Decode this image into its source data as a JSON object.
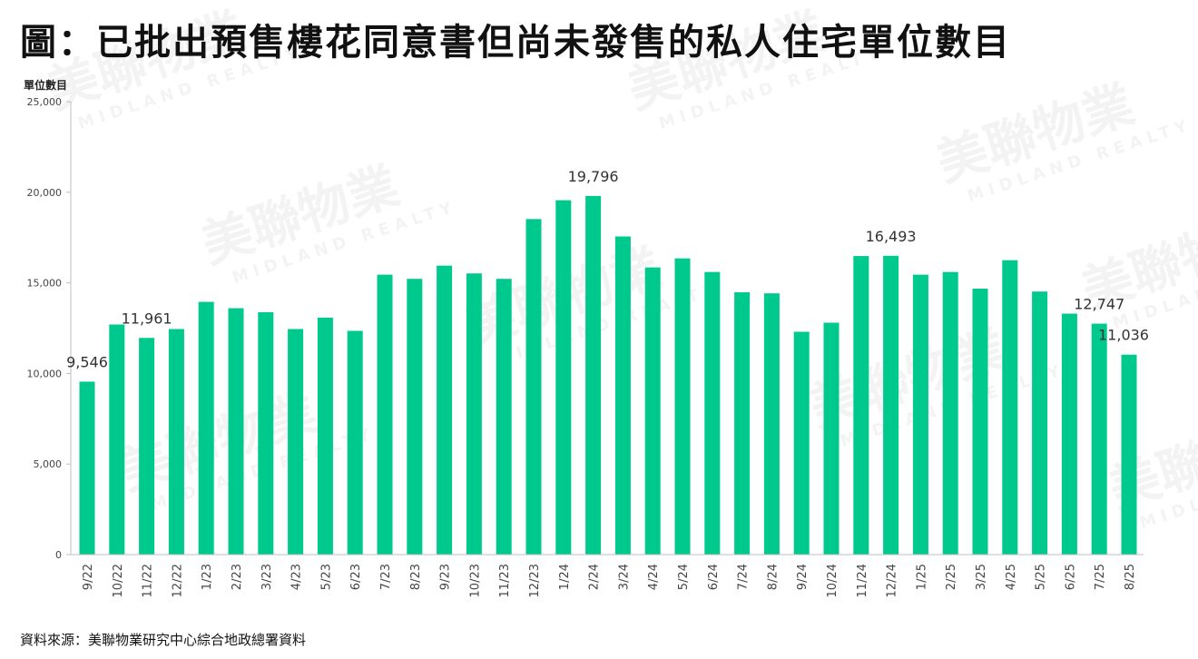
{
  "title": "圖：已批出預售樓花同意書但尚未發售的私人住宅單位數目",
  "source": "資料來源：美聯物業研究中心綜合地政總署資料",
  "watermark": {
    "brand": "美聯物業",
    "brand_en": "MIDLAND REALTY"
  },
  "colors": {
    "bar": "#00c98d",
    "axis": "#bfbfbf",
    "text": "#444444"
  },
  "chart_data": {
    "type": "bar",
    "ylabel": "單位數目",
    "ylim": [
      0,
      25000
    ],
    "yticks": [
      0,
      5000,
      10000,
      15000,
      20000,
      25000
    ],
    "ytick_labels": [
      "0",
      "5,000",
      "10,000",
      "15,000",
      "20,000",
      "25,000"
    ],
    "grid": false,
    "categories": [
      "9/22",
      "10/22",
      "11/22",
      "12/22",
      "1/23",
      "2/23",
      "3/23",
      "4/23",
      "5/23",
      "6/23",
      "7/23",
      "8/23",
      "9/23",
      "10/23",
      "11/23",
      "12/23",
      "1/24",
      "2/24",
      "3/24",
      "4/24",
      "5/24",
      "6/24",
      "7/24",
      "8/24",
      "9/24",
      "10/24",
      "11/24",
      "12/24",
      "1/25",
      "2/25",
      "3/25",
      "4/25",
      "5/25",
      "6/25",
      "7/25",
      "8/25"
    ],
    "values": [
      9546,
      12700,
      11961,
      12450,
      13950,
      13600,
      13380,
      12450,
      13080,
      12350,
      15450,
      15220,
      15950,
      15520,
      15220,
      18520,
      19560,
      19796,
      17560,
      15850,
      16350,
      15600,
      14480,
      14420,
      12300,
      12800,
      16480,
      16493,
      15450,
      15600,
      14680,
      16250,
      14520,
      13300,
      12747,
      11036
    ],
    "data_labels": [
      {
        "index": 0,
        "text": "9,546"
      },
      {
        "index": 2,
        "text": "11,961"
      },
      {
        "index": 17,
        "text": "19,796"
      },
      {
        "index": 27,
        "text": "16,493"
      },
      {
        "index": 34,
        "text": "12,747"
      },
      {
        "index": 35,
        "text": "11,036"
      }
    ]
  }
}
